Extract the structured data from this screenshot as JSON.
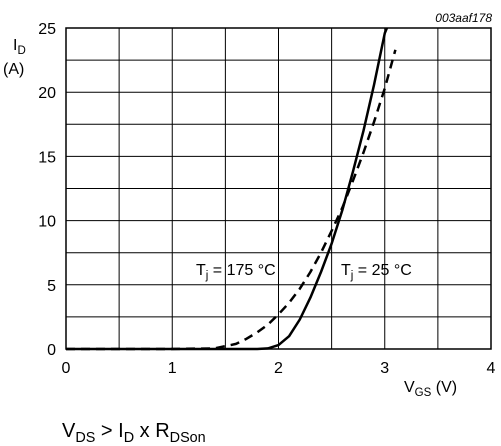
{
  "chart_data": {
    "type": "line",
    "figure_code": "003aaf178",
    "xlabel": {
      "main": "V",
      "sub": "GS",
      "unit": " (V)"
    },
    "ylabel": {
      "main": "I",
      "sub": "D",
      "unit": "(A)"
    },
    "xlim": [
      0,
      4
    ],
    "ylim": [
      0,
      25
    ],
    "xticks": [
      0,
      1,
      2,
      3,
      4
    ],
    "yticks": [
      0,
      5,
      10,
      15,
      20,
      25
    ],
    "grid": true,
    "series": [
      {
        "name": "Tj = 25 °C",
        "style": "solid",
        "x": [
          0,
          0.5,
          1.0,
          1.5,
          1.8,
          1.9,
          2.0,
          2.1,
          2.2,
          2.3,
          2.4,
          2.5,
          2.6,
          2.7,
          2.8,
          2.9,
          3.0,
          3.02
        ],
        "y": [
          0,
          0,
          0,
          0,
          0,
          0.05,
          0.3,
          1.0,
          2.3,
          4.0,
          6.0,
          8.2,
          10.8,
          13.8,
          17.0,
          20.6,
          24.6,
          25.0
        ]
      },
      {
        "name": "Tj = 175 °C",
        "style": "dashed",
        "x": [
          0,
          1.0,
          1.4,
          1.6,
          1.7,
          1.8,
          1.9,
          2.0,
          2.1,
          2.2,
          2.3,
          2.4,
          2.5,
          2.6,
          2.7,
          2.8,
          2.9,
          3.0,
          3.1
        ],
        "y": [
          0,
          0,
          0.05,
          0.4,
          0.8,
          1.3,
          1.9,
          2.7,
          3.6,
          4.7,
          6.0,
          7.5,
          9.2,
          11.0,
          13.1,
          15.3,
          17.7,
          20.3,
          23.3
        ]
      }
    ],
    "annotations": [
      {
        "pre": "T",
        "sub": "j",
        "post": " = 175 °C"
      },
      {
        "pre": "T",
        "sub": "j",
        "post": " = 25 °C"
      }
    ],
    "condition": {
      "v": "V",
      "v_sub": "DS",
      "mid": " > I",
      "i_sub": "D",
      "x": " x R",
      "r_sub": "DSon"
    }
  }
}
